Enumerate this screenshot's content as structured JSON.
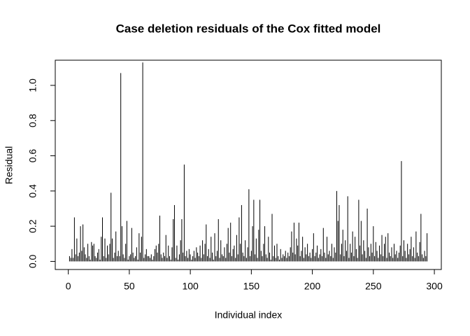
{
  "chart_data": {
    "type": "histline",
    "title": "Case deletion residuals of the Cox fitted model",
    "x_label": "Individual index",
    "y_label": "Residual",
    "color": "#000000",
    "x": [
      1,
      2,
      3,
      4,
      5,
      6,
      7,
      8,
      9,
      10,
      11,
      12,
      13,
      14,
      15,
      16,
      17,
      18,
      19,
      20,
      21,
      22,
      23,
      24,
      25,
      26,
      27,
      28,
      29,
      30,
      31,
      32,
      33,
      34,
      35,
      36,
      37,
      38,
      39,
      40,
      41,
      42,
      43,
      44,
      45,
      46,
      47,
      48,
      49,
      50,
      51,
      52,
      53,
      54,
      55,
      56,
      57,
      58,
      59,
      60,
      61,
      62,
      63,
      64,
      65,
      66,
      67,
      68,
      69,
      70,
      71,
      72,
      73,
      74,
      75,
      76,
      77,
      78,
      79,
      80,
      81,
      82,
      83,
      84,
      85,
      86,
      87,
      88,
      89,
      90,
      91,
      92,
      93,
      94,
      95,
      96,
      97,
      98,
      99,
      100,
      101,
      102,
      103,
      104,
      105,
      106,
      107,
      108,
      109,
      110,
      111,
      112,
      113,
      114,
      115,
      116,
      117,
      118,
      119,
      120,
      121,
      122,
      123,
      124,
      125,
      126,
      127,
      128,
      129,
      130,
      131,
      132,
      133,
      134,
      135,
      136,
      137,
      138,
      139,
      140,
      141,
      142,
      143,
      144,
      145,
      146,
      147,
      148,
      149,
      150,
      151,
      152,
      153,
      154,
      155,
      156,
      157,
      158,
      159,
      160,
      161,
      162,
      163,
      164,
      165,
      166,
      167,
      168,
      169,
      170,
      171,
      172,
      173,
      174,
      175,
      176,
      177,
      178,
      179,
      180,
      181,
      182,
      183,
      184,
      185,
      186,
      187,
      188,
      189,
      190,
      191,
      192,
      193,
      194,
      195,
      196,
      197,
      198,
      199,
      200,
      201,
      202,
      203,
      204,
      205,
      206,
      207,
      208,
      209,
      210,
      211,
      212,
      213,
      214,
      215,
      216,
      217,
      218,
      219,
      220,
      221,
      222,
      223,
      224,
      225,
      226,
      227,
      228,
      229,
      230,
      231,
      232,
      233,
      234,
      235,
      236,
      237,
      238,
      239,
      240,
      241,
      242,
      243,
      244,
      245,
      246,
      247,
      248,
      249,
      250,
      251,
      252,
      253,
      254,
      255,
      256,
      257,
      258,
      259,
      260,
      261,
      262,
      263,
      264,
      265,
      266,
      267,
      268,
      269,
      270,
      271,
      272,
      273,
      274,
      275,
      276,
      277,
      278,
      279,
      280,
      281,
      282,
      283,
      284,
      285,
      286,
      287,
      288,
      289,
      290,
      291,
      292,
      293,
      294
    ],
    "values": [
      0.03,
      0.02,
      0.07,
      0.02,
      0.25,
      0.04,
      0.13,
      0.03,
      0.05,
      0.2,
      0.06,
      0.21,
      0.08,
      0.04,
      0.02,
      0.1,
      0.03,
      0.01,
      0.11,
      0.09,
      0.1,
      0.03,
      0.02,
      0.05,
      0.07,
      0.01,
      0.14,
      0.25,
      0.03,
      0.13,
      0.02,
      0.09,
      0.04,
      0.1,
      0.39,
      0.13,
      0.02,
      0.05,
      0.17,
      0.03,
      0.06,
      0.03,
      1.07,
      0.2,
      0.04,
      0.02,
      0.1,
      0.23,
      0.01,
      0.03,
      0.04,
      0.19,
      0.05,
      0.02,
      0.03,
      0.08,
      0.01,
      0.16,
      0.05,
      0.14,
      1.13,
      0.02,
      0.04,
      0.07,
      0.03,
      0.03,
      0.02,
      0.04,
      0.01,
      0.03,
      0.07,
      0.09,
      0.05,
      0.1,
      0.26,
      0.04,
      0.02,
      0.05,
      0.03,
      0.15,
      0.02,
      0.09,
      0.03,
      0.01,
      0.08,
      0.24,
      0.32,
      0.02,
      0.09,
      0.01,
      0.04,
      0.12,
      0.24,
      0.05,
      0.55,
      0.03,
      0.06,
      0.02,
      0.07,
      0.04,
      0.01,
      0.03,
      0.06,
      0.02,
      0.08,
      0.05,
      0.03,
      0.09,
      0.02,
      0.12,
      0.04,
      0.1,
      0.21,
      0.03,
      0.07,
      0.02,
      0.14,
      0.05,
      0.01,
      0.16,
      0.03,
      0.06,
      0.24,
      0.02,
      0.12,
      0.04,
      0.03,
      0.08,
      0.02,
      0.1,
      0.19,
      0.05,
      0.22,
      0.03,
      0.07,
      0.09,
      0.02,
      0.15,
      0.04,
      0.25,
      0.1,
      0.32,
      0.05,
      0.03,
      0.12,
      0.02,
      0.08,
      0.41,
      0.03,
      0.06,
      0.2,
      0.35,
      0.04,
      0.13,
      0.02,
      0.18,
      0.35,
      0.06,
      0.03,
      0.1,
      0.2,
      0.04,
      0.02,
      0.14,
      0.05,
      0.01,
      0.27,
      0.03,
      0.09,
      0.02,
      0.1,
      0.03,
      0.01,
      0.07,
      0.02,
      0.04,
      0.03,
      0.06,
      0.02,
      0.05,
      0.03,
      0.08,
      0.17,
      0.05,
      0.22,
      0.04,
      0.13,
      0.09,
      0.22,
      0.03,
      0.06,
      0.14,
      0.02,
      0.08,
      0.04,
      0.1,
      0.03,
      0.05,
      0.02,
      0.07,
      0.16,
      0.03,
      0.05,
      0.09,
      0.02,
      0.04,
      0.07,
      0.03,
      0.19,
      0.05,
      0.02,
      0.14,
      0.04,
      0.06,
      0.03,
      0.1,
      0.02,
      0.08,
      0.05,
      0.4,
      0.23,
      0.32,
      0.04,
      0.1,
      0.18,
      0.03,
      0.12,
      0.06,
      0.37,
      0.02,
      0.1,
      0.05,
      0.17,
      0.03,
      0.14,
      0.07,
      0.02,
      0.35,
      0.09,
      0.23,
      0.04,
      0.12,
      0.06,
      0.02,
      0.3,
      0.08,
      0.03,
      0.1,
      0.05,
      0.2,
      0.03,
      0.11,
      0.06,
      0.02,
      0.09,
      0.04,
      0.15,
      0.03,
      0.1,
      0.14,
      0.02,
      0.16,
      0.05,
      0.03,
      0.08,
      0.02,
      0.1,
      0.04,
      0.06,
      0.02,
      0.05,
      0.09,
      0.57,
      0.03,
      0.12,
      0.06,
      0.02,
      0.1,
      0.04,
      0.07,
      0.14,
      0.03,
      0.08,
      0.02,
      0.17,
      0.05,
      0.03,
      0.11,
      0.27,
      0.04,
      0.02,
      0.06,
      0.03,
      0.16
    ],
    "xlim": [
      -10.7,
      305.7
    ],
    "ylim": [
      -0.046,
      1.143
    ],
    "xticks": [
      0,
      50,
      100,
      150,
      200,
      250,
      300
    ],
    "yticks": [
      {
        "value": 0,
        "label": "0.0"
      },
      0.2,
      0.4,
      0.6,
      0.8,
      {
        "value": 1,
        "label": "1.0"
      }
    ]
  }
}
